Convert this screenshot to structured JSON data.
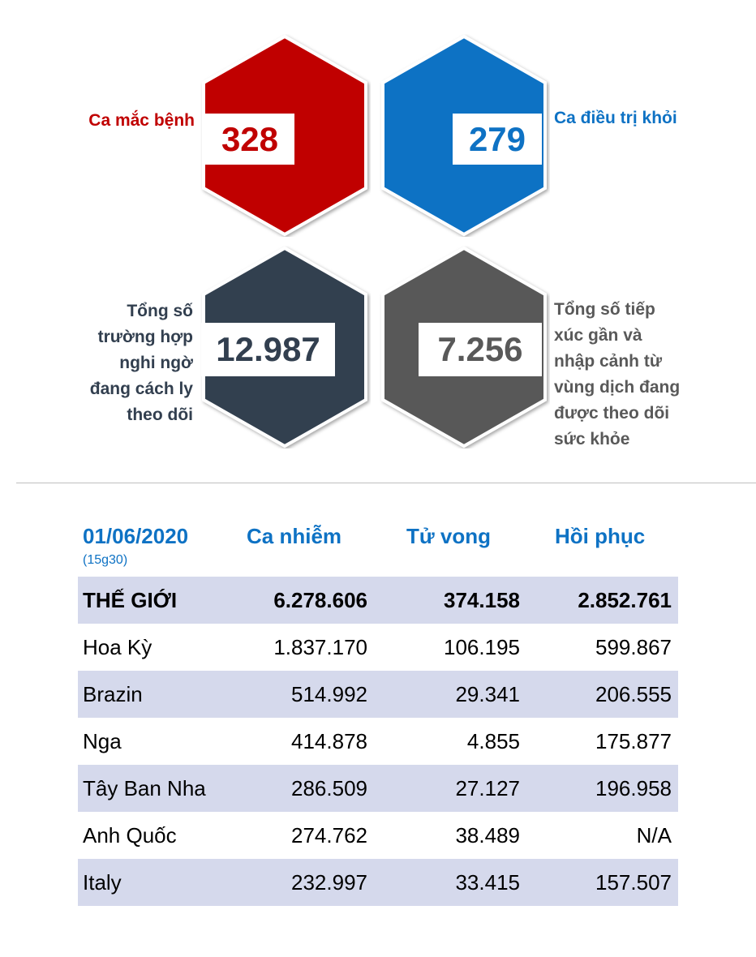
{
  "stats": {
    "cases": {
      "label": "Ca mắc bệnh",
      "value": "328",
      "color": "#c00000"
    },
    "recovered": {
      "label": "Ca điều trị khỏi",
      "value": "279",
      "color": "#0e72c4"
    },
    "quarantined": {
      "label": "Tổng số\ntrường hợp\nnghi ngờ\nđang cách ly\ntheo dõi",
      "value": "12.987",
      "color": "#323f4f"
    },
    "monitored": {
      "label": "Tổng số tiếp\nxúc gần và\nnhập cảnh từ\nvùng dịch đang\nđược theo dõi\nsức khỏe",
      "value": "7.256",
      "color": "#595959"
    }
  },
  "table": {
    "date": "01/06/2020",
    "time": "(15g30)",
    "headers": {
      "cases": "Ca nhiễm",
      "deaths": "Tử vong",
      "recovered": "Hồi phục"
    },
    "rows": [
      {
        "name": "THẾ GIỚI",
        "cases": "6.278.606",
        "deaths": "374.158",
        "recovered": "2.852.761"
      },
      {
        "name": "Hoa Kỳ",
        "cases": "1.837.170",
        "deaths": "106.195",
        "recovered": "599.867"
      },
      {
        "name": "Brazin",
        "cases": "514.992",
        "deaths": "29.341",
        "recovered": "206.555"
      },
      {
        "name": "Nga",
        "cases": "414.878",
        "deaths": "4.855",
        "recovered": "175.877"
      },
      {
        "name": "Tây Ban Nha",
        "cases": "286.509",
        "deaths": "27.127",
        "recovered": "196.958"
      },
      {
        "name": "Anh Quốc",
        "cases": "274.762",
        "deaths": "38.489",
        "recovered": "N/A"
      },
      {
        "name": "Italy",
        "cases": "232.997",
        "deaths": "33.415",
        "recovered": "157.507"
      }
    ]
  }
}
